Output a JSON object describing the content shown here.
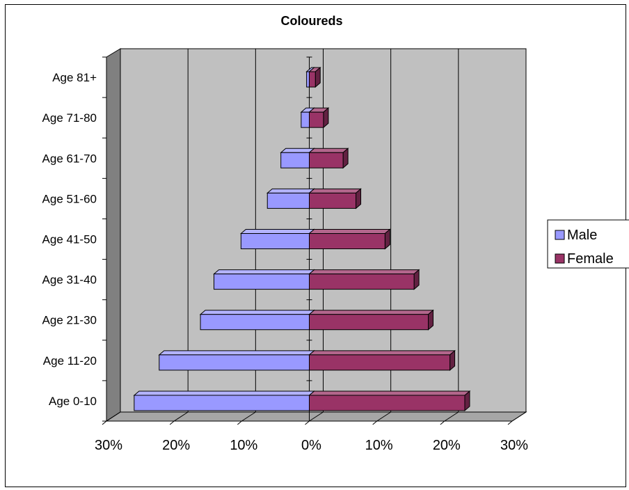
{
  "chart_data": {
    "type": "bar",
    "title": "Coloureds",
    "orientation": "horizontal",
    "style": "3d-population-pyramid",
    "categories": [
      "Age 0-10",
      "Age 11-20",
      "Age 21-30",
      "Age 31-40",
      "Age 41-50",
      "Age 51-60",
      "Age 61-70",
      "Age 71-80",
      "Age 81+"
    ],
    "series": [
      {
        "name": "Male",
        "side": "left",
        "values": [
          25.9,
          22.2,
          16.1,
          14.1,
          10.1,
          6.2,
          4.2,
          1.2,
          0.4
        ],
        "color": "#9999ff"
      },
      {
        "name": "Female",
        "side": "right",
        "values": [
          23.0,
          20.8,
          17.6,
          15.5,
          11.2,
          6.9,
          5.0,
          2.1,
          0.9
        ],
        "color": "#993366"
      }
    ],
    "xlim": [
      -30,
      30
    ],
    "x_tick_labels": [
      "30%",
      "20%",
      "10%",
      "0%",
      "10%",
      "20%",
      "30%"
    ],
    "grid": true,
    "legend_position": "right"
  }
}
